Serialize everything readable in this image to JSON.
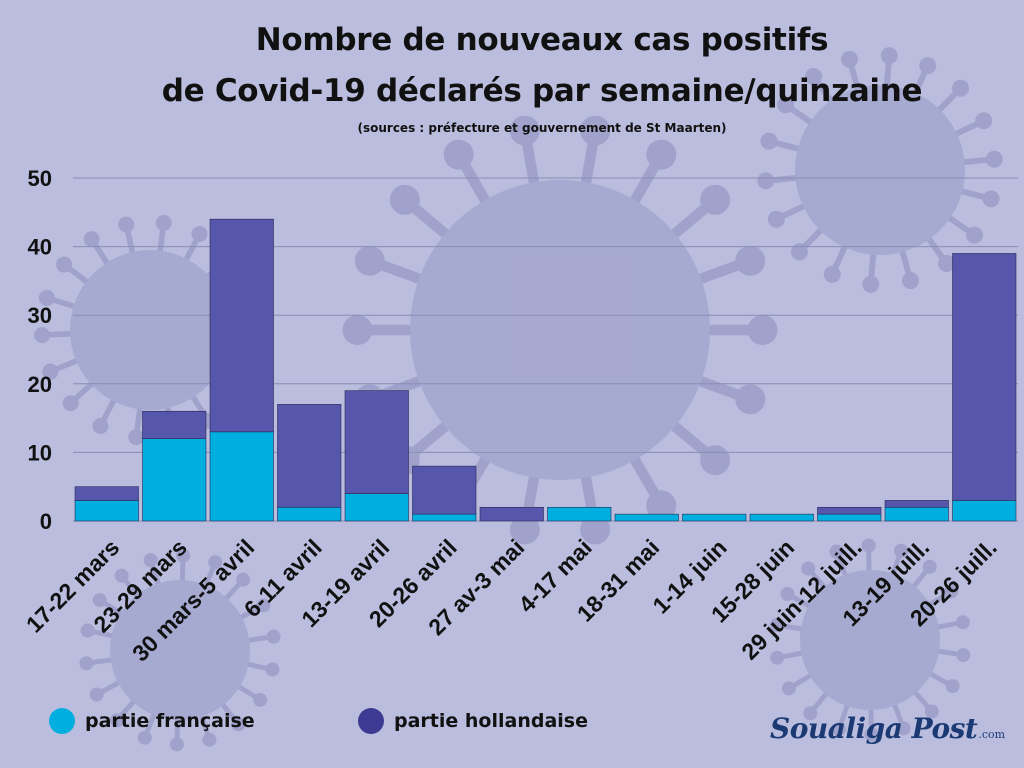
{
  "title_line1": "Nombre de nouveaux cas positifs",
  "title_line2": "de Covid-19  déclarés par semaine/quinzaine",
  "subtitle": "(sources : préfecture et gouvernement de St Maarten)",
  "brand": {
    "name": "Soualiga Post",
    "tld": ".com"
  },
  "colors": {
    "francaise": "#00aee0",
    "hollandaise": "#5656ac",
    "grid": "#8a8cb4"
  },
  "chart_data": {
    "type": "bar",
    "stacked": true,
    "categories": [
      "17-22 mars",
      "23-29 mars",
      "30 mars-5 avril",
      "6-11 avril",
      "13-19 avril",
      "20-26 avril",
      "27 av-3 mai",
      "4-17 mai",
      "18-31 mai",
      "1-14 juin",
      "15-28 juin",
      "29 juin-12 juill.",
      "13-19 juill.",
      "20-26 juill."
    ],
    "series": [
      {
        "name": "partie française",
        "values": [
          3,
          12,
          13,
          2,
          4,
          1,
          0,
          2,
          1,
          1,
          1,
          1,
          2,
          3
        ]
      },
      {
        "name": "partie hollandaise",
        "values": [
          2,
          4,
          31,
          15,
          15,
          7,
          2,
          0,
          0,
          0,
          0,
          1,
          1,
          36
        ]
      }
    ],
    "yticks": [
      0,
      10,
      20,
      30,
      40,
      50
    ],
    "ylim": [
      0,
      50
    ],
    "grid": true,
    "legend_position": "bottom-left"
  }
}
